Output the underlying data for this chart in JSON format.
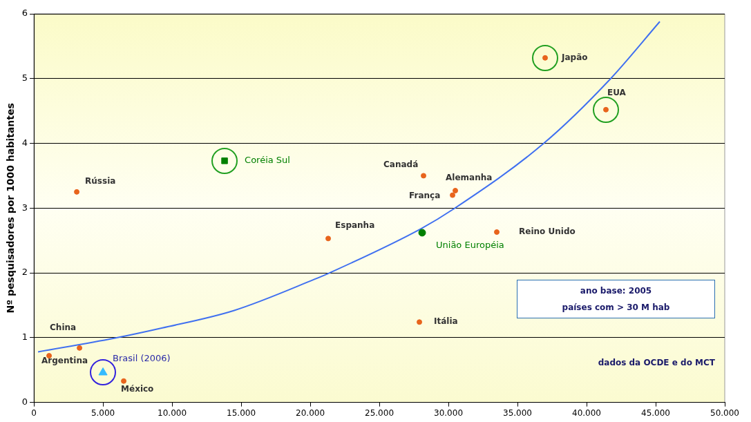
{
  "chart_data": {
    "type": "scatter",
    "ylabel": "Nº pesquisadores por 1000 habitantes",
    "xlim": [
      0,
      50000
    ],
    "xticks": [
      0,
      {
        "value": 5000,
        "label": "5.000"
      },
      {
        "value": 10000,
        "label": "10.000"
      },
      {
        "value": 15000,
        "label": "15.000"
      },
      {
        "value": 20000,
        "label": "20.000"
      },
      {
        "value": 25000,
        "label": "25.000"
      },
      {
        "value": 30000,
        "label": "30.000"
      },
      {
        "value": 35000,
        "label": "35.000"
      },
      {
        "value": 40000,
        "label": "40.000"
      },
      {
        "value": 45000,
        "label": "45.000"
      },
      {
        "value": 50000,
        "label": "50.000"
      }
    ],
    "ylim": [
      0,
      6
    ],
    "yticks": [
      0,
      1,
      2,
      3,
      4,
      5,
      6
    ],
    "grid": "y",
    "legend": false,
    "series": [
      {
        "color": "#e8641c",
        "marker": "circle",
        "x": [
          37000,
          41400,
          28200,
          30500,
          30300,
          3100,
          21300,
          33500,
          27900,
          3300,
          1100,
          6500
        ],
        "values": [
          5.32,
          4.52,
          3.5,
          3.27,
          3.2,
          3.25,
          2.53,
          2.63,
          1.24,
          0.84,
          0.72,
          0.33
        ]
      },
      {
        "name": "Coréia Sul",
        "color": "#008000",
        "marker": "square",
        "x": [
          13800
        ],
        "values": [
          3.73
        ]
      },
      {
        "name": "União Européia",
        "color": "#008000",
        "marker": "circle",
        "x": [
          28100
        ],
        "values": [
          2.62
        ]
      },
      {
        "name": "Brasil (2006)",
        "color": "#33bbff",
        "marker": "triangle",
        "x": [
          5000
        ],
        "values": [
          0.46
        ]
      },
      {
        "type": "line",
        "color": "#4070f0",
        "marker": "none",
        "line_style": "solid",
        "x": [
          300,
          5800,
          9300,
          14500,
          20300,
          21400,
          28000,
          30400,
          36900,
          41700,
          45300
        ],
        "values": [
          0.78,
          0.99,
          1.15,
          1.42,
          1.9,
          2.0,
          2.68,
          2.99,
          4.0,
          4.99,
          5.88
        ]
      }
    ],
    "annotations": [
      {
        "text": "Japão",
        "x": 37000,
        "y": 5.32
      },
      {
        "text": "EUA",
        "x": 41400,
        "y": 4.52
      },
      {
        "text": "Canadá",
        "x": 28200,
        "y": 3.5
      },
      {
        "text": "Alemanha",
        "x": 30500,
        "y": 3.27
      },
      {
        "text": "França",
        "x": 30300,
        "y": 3.2
      },
      {
        "text": "Rússia",
        "x": 3100,
        "y": 3.25
      },
      {
        "text": "Espanha",
        "x": 21300,
        "y": 2.53
      },
      {
        "text": "Reino Unido",
        "x": 33500,
        "y": 2.63
      },
      {
        "text": "Itália",
        "x": 27900,
        "y": 1.24
      },
      {
        "text": "China",
        "x": 3300,
        "y": 0.84
      },
      {
        "text": "Argentina",
        "x": 1100,
        "y": 0.72
      },
      {
        "text": "México",
        "x": 6500,
        "y": 0.33
      },
      "ano base: 2005",
      "países com > 30 M hab",
      "dados da OCDE e do MCT"
    ]
  }
}
